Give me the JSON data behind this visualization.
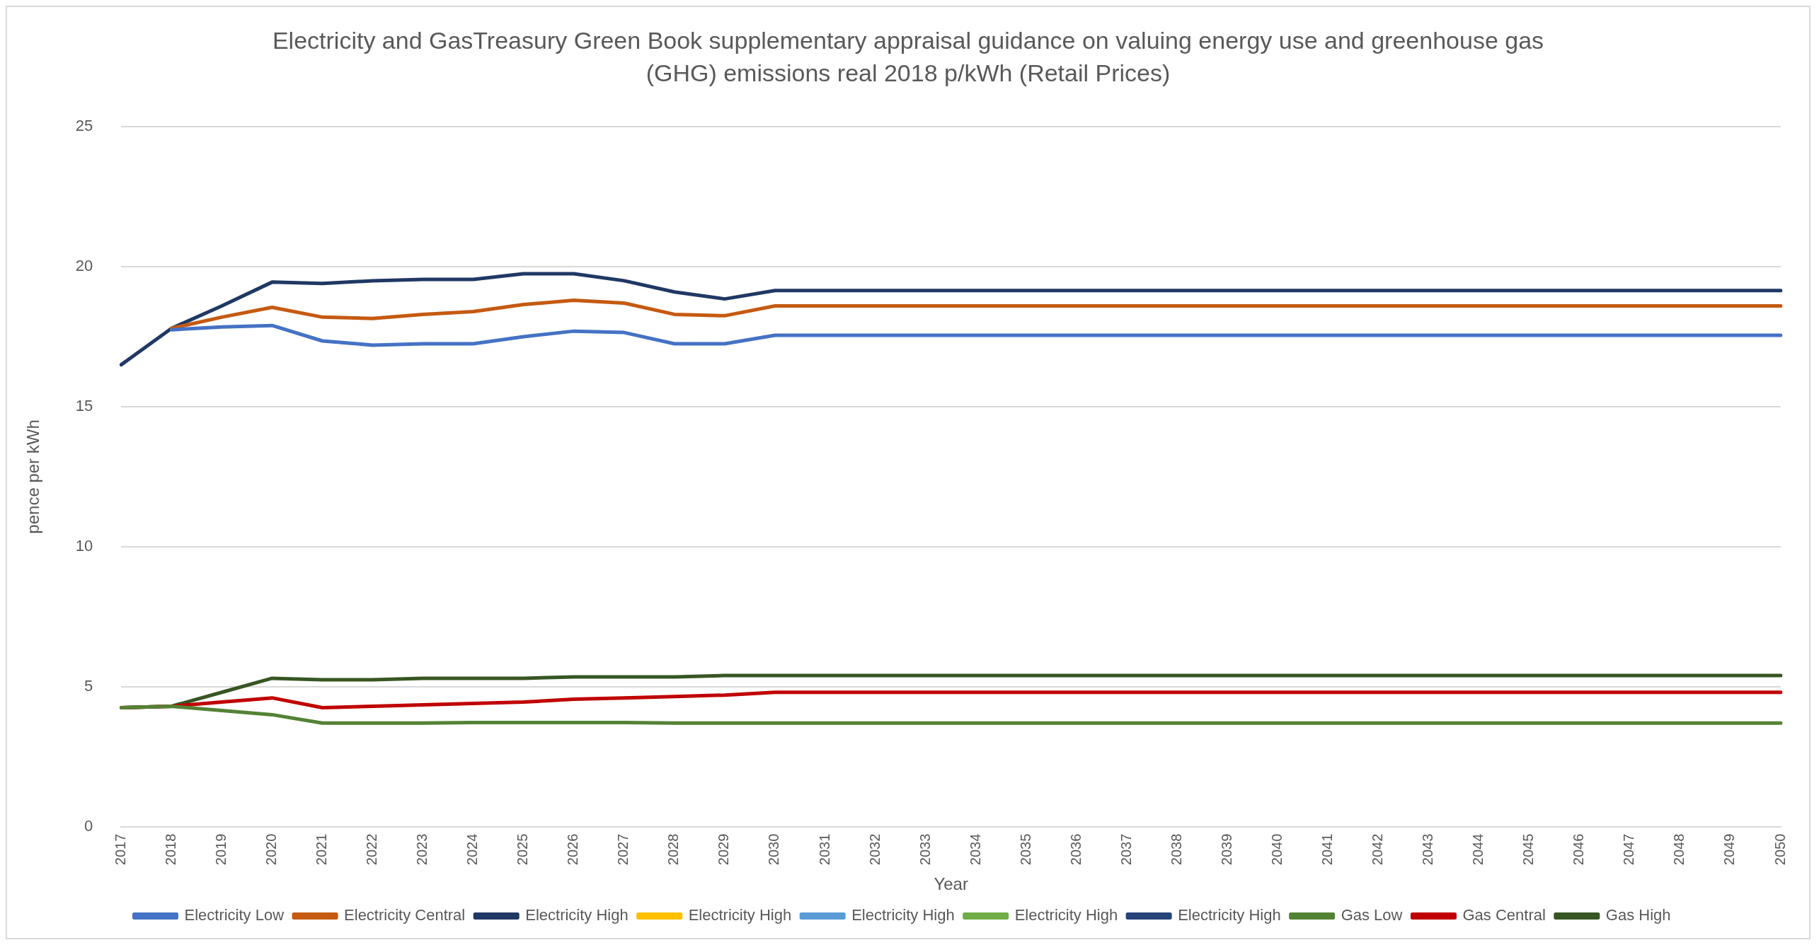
{
  "chart_data": {
    "type": "line",
    "title": "Electricity and GasTreasury Green Book supplementary appraisal guidance on valuing energy use and greenhouse gas (GHG) emissions  real 2018 p/kWh (Retail Prices)",
    "xlabel": "Year",
    "ylabel": "pence per kWh",
    "categories": [
      "2017",
      "2018",
      "2019",
      "2020",
      "2021",
      "2022",
      "2023",
      "2024",
      "2025",
      "2026",
      "2027",
      "2028",
      "2029",
      "2030",
      "2031",
      "2032",
      "2033",
      "2034",
      "2035",
      "2036",
      "2037",
      "2038",
      "2039",
      "2040",
      "2041",
      "2042",
      "2043",
      "2044",
      "2045",
      "2046",
      "2047",
      "2048",
      "2049",
      "2050"
    ],
    "ylim": [
      0,
      25
    ],
    "yticks": [
      0,
      5,
      10,
      15,
      20,
      25
    ],
    "grid": "y",
    "legend": "bottom",
    "marker": "none",
    "line_style": "solid",
    "series": [
      {
        "name": "Electricity Low",
        "color": "#4472c4",
        "values": [
          null,
          17.75,
          17.85,
          17.9,
          17.35,
          17.2,
          17.25,
          17.25,
          17.5,
          17.7,
          17.65,
          17.25,
          17.25,
          17.55,
          17.55,
          17.55,
          17.55,
          17.55,
          17.55,
          17.55,
          17.55,
          17.55,
          17.55,
          17.55,
          17.55,
          17.55,
          17.55,
          17.55,
          17.55,
          17.55,
          17.55,
          17.55,
          17.55,
          17.55
        ]
      },
      {
        "name": "Electricity Central",
        "color": "#c55a11",
        "values": [
          null,
          17.8,
          18.2,
          18.55,
          18.2,
          18.15,
          18.3,
          18.4,
          18.65,
          18.8,
          18.7,
          18.3,
          18.25,
          18.6,
          18.6,
          18.6,
          18.6,
          18.6,
          18.6,
          18.6,
          18.6,
          18.6,
          18.6,
          18.6,
          18.6,
          18.6,
          18.6,
          18.6,
          18.6,
          18.6,
          18.6,
          18.6,
          18.6,
          18.6
        ]
      },
      {
        "name": "Electricity High",
        "color": "#203864",
        "values": [
          16.5,
          17.8,
          18.6,
          19.45,
          19.4,
          19.5,
          19.55,
          19.55,
          19.75,
          19.75,
          19.5,
          19.1,
          18.85,
          19.15,
          19.15,
          19.15,
          19.15,
          19.15,
          19.15,
          19.15,
          19.15,
          19.15,
          19.15,
          19.15,
          19.15,
          19.15,
          19.15,
          19.15,
          19.15,
          19.15,
          19.15,
          19.15,
          19.15,
          19.15
        ]
      },
      {
        "name": "Electricity High",
        "color": "#ffc000",
        "values": [
          null,
          null,
          null,
          null,
          null,
          null,
          null,
          null,
          null,
          null,
          null,
          null,
          null,
          null,
          null,
          null,
          null,
          null,
          null,
          null,
          null,
          null,
          null,
          null,
          null,
          null,
          null,
          null,
          null,
          null,
          null,
          null,
          null,
          null
        ]
      },
      {
        "name": "Electricity High",
        "color": "#5b9bd5",
        "values": [
          null,
          null,
          null,
          null,
          null,
          null,
          null,
          null,
          null,
          null,
          null,
          null,
          null,
          null,
          null,
          null,
          null,
          null,
          null,
          null,
          null,
          null,
          null,
          null,
          null,
          null,
          null,
          null,
          null,
          null,
          null,
          null,
          null,
          null
        ]
      },
      {
        "name": "Electricity High",
        "color": "#70ad47",
        "values": [
          null,
          null,
          null,
          null,
          null,
          null,
          null,
          null,
          null,
          null,
          null,
          null,
          null,
          null,
          null,
          null,
          null,
          null,
          null,
          null,
          null,
          null,
          null,
          null,
          null,
          null,
          null,
          null,
          null,
          null,
          null,
          null,
          null,
          null
        ]
      },
      {
        "name": "Electricity High",
        "color": "#264478",
        "values": [
          null,
          null,
          null,
          null,
          null,
          null,
          null,
          null,
          null,
          null,
          null,
          null,
          null,
          null,
          null,
          null,
          null,
          null,
          null,
          null,
          null,
          null,
          null,
          null,
          null,
          null,
          null,
          null,
          null,
          null,
          null,
          null,
          null,
          null
        ]
      },
      {
        "name": "Gas Low",
        "color": "#548235",
        "values": [
          4.25,
          4.3,
          4.15,
          4.0,
          3.7,
          3.7,
          3.7,
          3.72,
          3.72,
          3.72,
          3.72,
          3.7,
          3.7,
          3.7,
          3.7,
          3.7,
          3.7,
          3.7,
          3.7,
          3.7,
          3.7,
          3.7,
          3.7,
          3.7,
          3.7,
          3.7,
          3.7,
          3.7,
          3.7,
          3.7,
          3.7,
          3.7,
          3.7,
          3.7
        ]
      },
      {
        "name": "Gas Central",
        "color": "#c00000",
        "values": [
          4.25,
          4.3,
          4.45,
          4.6,
          4.25,
          4.3,
          4.35,
          4.4,
          4.45,
          4.55,
          4.6,
          4.65,
          4.7,
          4.8,
          4.8,
          4.8,
          4.8,
          4.8,
          4.8,
          4.8,
          4.8,
          4.8,
          4.8,
          4.8,
          4.8,
          4.8,
          4.8,
          4.8,
          4.8,
          4.8,
          4.8,
          4.8,
          4.8,
          4.8
        ]
      },
      {
        "name": "Gas High",
        "color": "#375623",
        "values": [
          4.25,
          4.3,
          4.8,
          5.3,
          5.25,
          5.25,
          5.3,
          5.3,
          5.3,
          5.35,
          5.35,
          5.35,
          5.4,
          5.4,
          5.4,
          5.4,
          5.4,
          5.4,
          5.4,
          5.4,
          5.4,
          5.4,
          5.4,
          5.4,
          5.4,
          5.4,
          5.4,
          5.4,
          5.4,
          5.4,
          5.4,
          5.4,
          5.4,
          5.4
        ]
      }
    ]
  }
}
